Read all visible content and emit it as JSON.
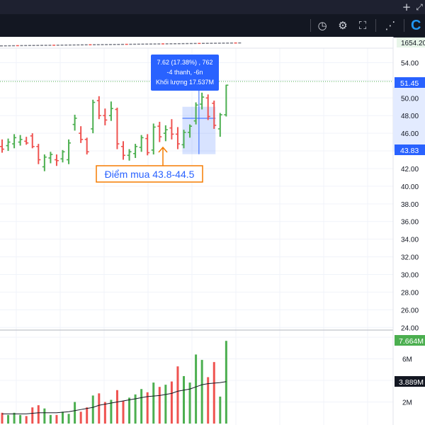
{
  "window": {
    "icons": [
      "plus-icon",
      "expand-icon"
    ],
    "plus_glyph": "+",
    "expand_glyph": "⤢"
  },
  "toolbar": {
    "icons": [
      "screenshot-timer-icon",
      "gear-icon",
      "fullscreen-icon",
      "share-icon",
      "brand-logo-icon"
    ],
    "timer_glyph": "◷",
    "gear_glyph": "⚙",
    "fullscreen_glyph": "⛶",
    "share_glyph": "⋰",
    "brand_glyph": "C"
  },
  "colors": {
    "up": "#4caf50",
    "down": "#ef5350",
    "avg_line": "#131722",
    "annotation": "#f57c00",
    "tooltip_bg": "#2962ff",
    "range_fill": "#2962ff",
    "price_tag": "#2962ff"
  },
  "chart_data": [
    {
      "type": "bar",
      "subtype": "ohlc",
      "yaxis_ticks": [
        "54.00",
        "52.00",
        "50.00",
        "48.00",
        "46.00",
        "44.00",
        "42.00",
        "40.00",
        "38.00",
        "36.00",
        "34.00",
        "32.00",
        "30.00",
        "28.00",
        "26.00",
        "24.00"
      ],
      "ylim": [
        23.7,
        55.0
      ],
      "grid": true,
      "overview_value": "1654.20",
      "last_price_label": "51.45",
      "last_price": 51.45,
      "crosshair_price_label": "43.83",
      "crosshair_price": 43.83,
      "bars": [
        {
          "o": 44.5,
          "h": 45.3,
          "l": 43.8,
          "c": 44.2
        },
        {
          "o": 44.6,
          "h": 45.4,
          "l": 44.0,
          "c": 45.0
        },
        {
          "o": 44.8,
          "h": 45.9,
          "l": 44.3,
          "c": 45.5
        },
        {
          "o": 45.0,
          "h": 45.8,
          "l": 44.6,
          "c": 45.3
        },
        {
          "o": 45.1,
          "h": 45.6,
          "l": 44.7,
          "c": 44.9
        },
        {
          "o": 45.7,
          "h": 46.0,
          "l": 44.3,
          "c": 44.5
        },
        {
          "o": 44.5,
          "h": 44.8,
          "l": 42.5,
          "c": 43.0
        },
        {
          "o": 42.2,
          "h": 43.6,
          "l": 41.7,
          "c": 43.3
        },
        {
          "o": 43.2,
          "h": 43.9,
          "l": 42.6,
          "c": 43.6
        },
        {
          "o": 43.0,
          "h": 43.6,
          "l": 42.3,
          "c": 42.9
        },
        {
          "o": 43.1,
          "h": 44.1,
          "l": 42.7,
          "c": 43.9
        },
        {
          "o": 43.0,
          "h": 45.3,
          "l": 42.5,
          "c": 44.9
        },
        {
          "o": 47.0,
          "h": 48.1,
          "l": 46.3,
          "c": 47.7
        },
        {
          "o": 46.0,
          "h": 46.8,
          "l": 44.9,
          "c": 45.3
        },
        {
          "o": 45.3,
          "h": 45.5,
          "l": 43.6,
          "c": 43.9
        },
        {
          "o": 46.5,
          "h": 49.8,
          "l": 46.0,
          "c": 49.5
        },
        {
          "o": 49.7,
          "h": 50.2,
          "l": 47.6,
          "c": 48.0
        },
        {
          "o": 48.0,
          "h": 48.8,
          "l": 46.9,
          "c": 47.5
        },
        {
          "o": 48.0,
          "h": 49.6,
          "l": 47.4,
          "c": 48.8
        },
        {
          "o": 48.7,
          "h": 48.9,
          "l": 44.2,
          "c": 44.8
        },
        {
          "o": 44.5,
          "h": 45.1,
          "l": 43.0,
          "c": 43.5
        },
        {
          "o": 43.5,
          "h": 44.2,
          "l": 42.9,
          "c": 43.9
        },
        {
          "o": 43.7,
          "h": 44.8,
          "l": 43.2,
          "c": 44.5
        },
        {
          "o": 44.4,
          "h": 45.8,
          "l": 43.9,
          "c": 45.5
        },
        {
          "o": 45.4,
          "h": 45.9,
          "l": 43.5,
          "c": 43.8
        },
        {
          "o": 44.1,
          "h": 47.1,
          "l": 43.6,
          "c": 46.7
        },
        {
          "o": 46.8,
          "h": 47.3,
          "l": 45.0,
          "c": 45.6
        },
        {
          "o": 46.0,
          "h": 46.9,
          "l": 45.1,
          "c": 46.4
        },
        {
          "o": 46.6,
          "h": 47.6,
          "l": 45.3,
          "c": 45.9
        },
        {
          "o": 45.9,
          "h": 46.7,
          "l": 44.2,
          "c": 44.8
        },
        {
          "o": 44.7,
          "h": 46.4,
          "l": 44.3,
          "c": 46.1
        },
        {
          "o": 46.1,
          "h": 47.0,
          "l": 45.5,
          "c": 46.8
        },
        {
          "o": 47.4,
          "h": 49.5,
          "l": 47.0,
          "c": 49.2
        },
        {
          "o": 49.3,
          "h": 50.6,
          "l": 48.7,
          "c": 50.1
        },
        {
          "o": 50.0,
          "h": 50.4,
          "l": 47.5,
          "c": 47.9
        },
        {
          "o": 49.4,
          "h": 49.7,
          "l": 46.5,
          "c": 46.9
        },
        {
          "o": 46.5,
          "h": 48.3,
          "l": 45.6,
          "c": 48.1
        },
        {
          "o": 48.1,
          "h": 51.5,
          "l": 47.9,
          "c": 51.45
        }
      ],
      "measure_tooltip": {
        "line1": "7.62 (17.38%) , 762",
        "line2": "-4 thanh, -6n",
        "line3": "Khối lượng 17.537M",
        "range_from_bar": 30,
        "range_to_bar": 35,
        "price_low": 43.83,
        "price_high": 48.0
      },
      "annotation": {
        "text": "Điểm mua 43.8-44.5",
        "bar": 29
      }
    },
    {
      "type": "bar",
      "subtype": "volume",
      "yaxis_ticks": [
        "8M",
        "6M",
        "4M",
        "2M"
      ],
      "ylim": [
        0,
        8.4
      ],
      "last_volume_label": "7.664M",
      "avg_volume_label": "3.889M",
      "values": [
        1.0,
        0.8,
        1.0,
        0.8,
        0.7,
        1.5,
        1.7,
        1.4,
        0.8,
        0.8,
        1.1,
        0.9,
        2.0,
        1.1,
        1.5,
        2.6,
        2.8,
        2.0,
        2.2,
        3.1,
        2.1,
        2.4,
        2.7,
        3.2,
        2.9,
        3.8,
        3.4,
        3.6,
        3.9,
        5.3,
        4.4,
        3.8,
        6.4,
        5.9,
        4.3,
        5.7,
        2.5,
        7.664
      ],
      "avg": [
        0.9,
        0.9,
        0.9,
        0.9,
        0.9,
        0.95,
        1.0,
        1.0,
        1.0,
        1.0,
        1.05,
        1.1,
        1.2,
        1.3,
        1.4,
        1.5,
        1.7,
        1.8,
        1.9,
        2.0,
        2.1,
        2.2,
        2.3,
        2.4,
        2.5,
        2.55,
        2.6,
        2.7,
        2.8,
        3.0,
        3.1,
        3.2,
        3.4,
        3.6,
        3.7,
        3.75,
        3.8,
        3.889
      ]
    }
  ]
}
